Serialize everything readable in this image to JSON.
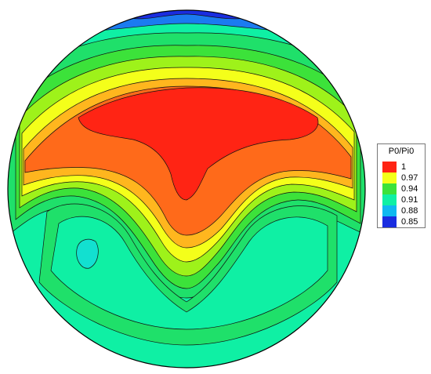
{
  "chart_data": {
    "type": "heatmap",
    "legend": {
      "title": "P0/Pi0",
      "ticks": [
        "1",
        "0.97",
        "0.94",
        "0.91",
        "0.88",
        "0.85"
      ],
      "values": [
        1.0,
        0.97,
        0.94,
        0.91,
        0.88,
        0.85
      ],
      "placement": "right"
    },
    "levels": [
      0.85,
      0.865,
      0.88,
      0.895,
      0.91,
      0.925,
      0.94,
      0.955,
      0.97,
      0.985,
      1.0
    ],
    "colors": [
      "#1a2de0",
      "#1b7bf0",
      "#10b8f0",
      "#12e0d0",
      "#0ff0a4",
      "#1fe06a",
      "#3ce23a",
      "#9ef21a",
      "#f4ff1a",
      "#ffb61e",
      "#ff6a1a",
      "#ff2414"
    ],
    "description": "Total pressure recovery contour over a circular cross-section; high recovery in upper region with an inverted lobe dipping to center, lower recovery at left-lower and right-lower regions, minimum near top edge."
  }
}
